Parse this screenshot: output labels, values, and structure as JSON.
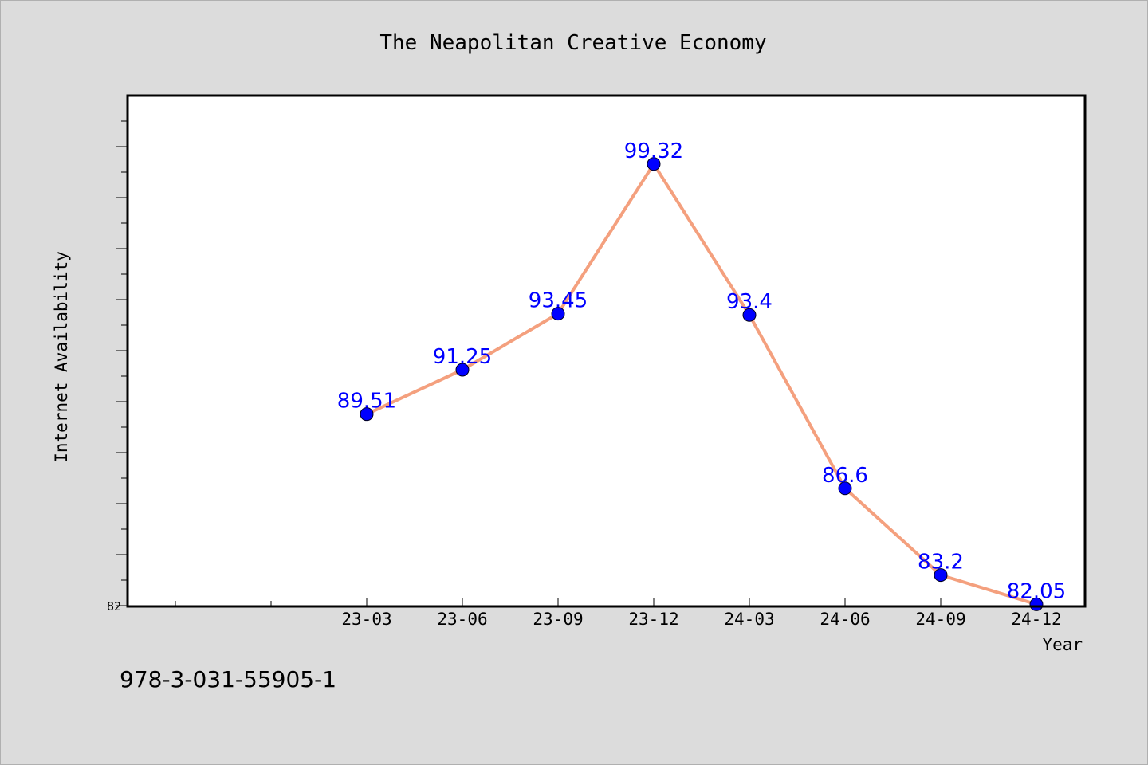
{
  "chart_data": {
    "type": "line",
    "title": "The Neapolitan Creative Economy",
    "xlabel": "Year",
    "ylabel": "Internet Availability",
    "categories": [
      "23-03",
      "23-06",
      "23-09",
      "23-12",
      "24-03",
      "24-06",
      "24-09",
      "24-12"
    ],
    "series": [
      {
        "values": [
          89.51,
          91.25,
          93.45,
          99.32,
          93.4,
          86.6,
          83.2,
          82.05
        ]
      }
    ],
    "data_labels": [
      "89.51",
      "91.25",
      "93.45",
      "99.32",
      "93.4",
      "86.6",
      "83.2",
      "82.05"
    ],
    "yticks_labeled": [
      82
    ],
    "ylim": [
      82,
      102
    ],
    "grid": false,
    "legend": "none",
    "colors": {
      "line": "#f4a07e",
      "marker": "#0000ff",
      "data_label": "#0000ff",
      "plot_background": "#ffffff",
      "figure_background": "#dcdcdc"
    }
  },
  "caption": "978-3-031-55905-1"
}
